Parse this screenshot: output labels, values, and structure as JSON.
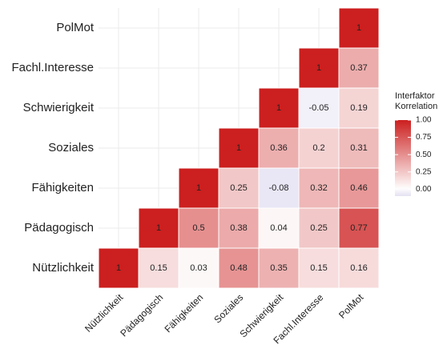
{
  "chart_data": {
    "type": "heatmap",
    "x": [
      "Nützlichkeit",
      "Pädagogisch",
      "Fähigkeiten",
      "Soziales",
      "Schwierigkeit",
      "Fachl.Interesse",
      "PolMot"
    ],
    "y": [
      "Nützlichkeit",
      "Pädagogisch",
      "Fähigkeiten",
      "Soziales",
      "Schwierigkeit",
      "Fachl.Interesse",
      "PolMot"
    ],
    "values": [
      [
        1,
        0.15,
        0.03,
        0.48,
        0.35,
        0.15,
        0.16
      ],
      [
        null,
        1,
        0.5,
        0.38,
        0.04,
        0.25,
        0.77
      ],
      [
        null,
        null,
        1,
        0.25,
        -0.08,
        0.32,
        0.46
      ],
      [
        null,
        null,
        null,
        1,
        0.36,
        0.2,
        0.31
      ],
      [
        null,
        null,
        null,
        null,
        1,
        -0.05,
        0.19
      ],
      [
        null,
        null,
        null,
        null,
        null,
        1,
        0.37
      ],
      [
        null,
        null,
        null,
        null,
        null,
        null,
        1
      ]
    ],
    "legend_title": [
      "Interfaktor",
      "Korrelation"
    ],
    "colorlim": [
      -0.1,
      1
    ],
    "colorticks": [
      {
        "value": 0,
        "label": "0.00"
      },
      {
        "value": 0.25,
        "label": "0.25"
      },
      {
        "value": 0.5,
        "label": "0.50"
      },
      {
        "value": 0.75,
        "label": "0.75"
      },
      {
        "value": 1,
        "label": "1.00"
      }
    ],
    "colors": {
      "low": "#e4e0f2",
      "mid": "#ffffff",
      "high": "#cc1f1f"
    },
    "grid": true
  }
}
